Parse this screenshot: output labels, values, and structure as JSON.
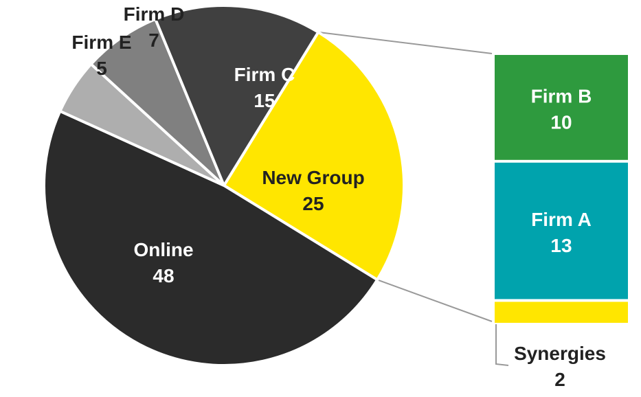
{
  "chart_data": {
    "type": "pie",
    "title": "",
    "slices": [
      {
        "name": "New Group",
        "value": 25,
        "color": "#FFE600"
      },
      {
        "name": "Online",
        "value": 48,
        "color": "#2B2B2B"
      },
      {
        "name": "Firm E",
        "value": 5,
        "color": "#AEAEAE"
      },
      {
        "name": "Firm D",
        "value": 7,
        "color": "#808080"
      },
      {
        "name": "Firm C",
        "value": 15,
        "color": "#404040"
      }
    ],
    "breakdown": {
      "of": "New Group",
      "type": "stacked-bar",
      "segments": [
        {
          "name": "Firm B",
          "value": 10,
          "color": "#2E9A3E"
        },
        {
          "name": "Firm A",
          "value": 13,
          "color": "#00A3AD"
        },
        {
          "name": "Synergies",
          "value": 2,
          "color": "#FFE600"
        }
      ]
    }
  }
}
